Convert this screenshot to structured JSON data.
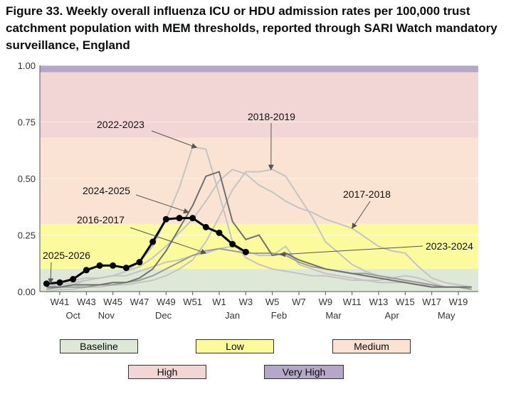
{
  "title": "Figure 33. Weekly overall influenza ICU or HDU admission rates per 100,000 trust catchment population with MEM thresholds, reported through SARI Watch mandatory surveillance, England",
  "chart_data": {
    "type": "line",
    "ylim": [
      0,
      1.0
    ],
    "yticks": [
      "0.00",
      "0.25",
      "0.50",
      "0.75",
      "1.00"
    ],
    "ytick_values": [
      0,
      0.25,
      0.5,
      0.75,
      1.0
    ],
    "weeks": [
      "W40",
      "W41",
      "W42",
      "W43",
      "W44",
      "W45",
      "W46",
      "W47",
      "W48",
      "W49",
      "W50",
      "W51",
      "W52",
      "W1",
      "W2",
      "W3",
      "W4",
      "W5",
      "W6",
      "W7",
      "W8",
      "W9",
      "W10",
      "W11",
      "W12",
      "W13",
      "W14",
      "W15",
      "W16",
      "W17",
      "W18",
      "W19",
      "W20"
    ],
    "xtick_labels": [
      "W41",
      "W43",
      "W45",
      "W47",
      "W49",
      "W51",
      "W1",
      "W3",
      "W5",
      "W7",
      "W9",
      "W11",
      "W13",
      "W15",
      "W17",
      "W19"
    ],
    "xtick_index": [
      1,
      3,
      5,
      7,
      9,
      11,
      13,
      15,
      17,
      19,
      21,
      23,
      25,
      27,
      29,
      31
    ],
    "month_labels": [
      "Oct",
      "Nov",
      "Dec",
      "Jan",
      "Feb",
      "Mar",
      "Apr",
      "May"
    ],
    "month_index": [
      2,
      4.5,
      8.8,
      14,
      17.5,
      21.6,
      26,
      30.1
    ],
    "thresholds": [
      {
        "name": "Baseline",
        "from": 0,
        "to": 0.1,
        "color": "#dde8d6"
      },
      {
        "name": "Low",
        "from": 0.1,
        "to": 0.3,
        "color": "#fbfb9e"
      },
      {
        "name": "Medium",
        "from": 0.3,
        "to": 0.68,
        "color": "#fbe3d3"
      },
      {
        "name": "High",
        "from": 0.68,
        "to": 0.97,
        "color": "#f2d6d6"
      },
      {
        "name": "Very High",
        "from": 0.97,
        "to": 1.0,
        "color": "#b4a7c8"
      }
    ],
    "series": [
      {
        "name": "2017-2018",
        "color": "#c4c4c4",
        "width": 2,
        "values": [
          0.02,
          0.03,
          0.04,
          0.05,
          0.06,
          0.07,
          0.09,
          0.11,
          0.15,
          0.2,
          0.26,
          0.32,
          0.4,
          0.49,
          0.54,
          0.52,
          0.47,
          0.44,
          0.4,
          0.37,
          0.35,
          0.32,
          0.3,
          0.28,
          0.24,
          0.2,
          0.18,
          0.17,
          0.11,
          0.06,
          0.04,
          0.03,
          0.02
        ]
      },
      {
        "name": "2018-2019",
        "color": "#c4c4c4",
        "width": 2,
        "values": [
          0.0,
          0.01,
          0.01,
          0.02,
          0.02,
          0.03,
          0.03,
          0.04,
          0.05,
          0.07,
          0.1,
          0.14,
          0.22,
          0.33,
          0.45,
          0.53,
          0.53,
          0.54,
          0.51,
          0.42,
          0.33,
          0.22,
          0.17,
          0.12,
          0.09,
          0.07,
          0.06,
          0.05,
          0.04,
          0.03,
          0.02,
          0.02,
          0.01
        ]
      },
      {
        "name": "2022-2023",
        "color": "#c4c4c4",
        "width": 2,
        "values": [
          0.01,
          0.02,
          0.03,
          0.05,
          0.06,
          0.07,
          0.09,
          0.13,
          0.2,
          0.32,
          0.46,
          0.64,
          0.63,
          0.43,
          0.22,
          0.15,
          0.12,
          0.1,
          0.09,
          0.08,
          0.07,
          0.07,
          0.06,
          0.05,
          0.05,
          0.04,
          0.04,
          0.04,
          0.03,
          0.03,
          0.02,
          0.02,
          0.02
        ]
      },
      {
        "name": "2016-2017",
        "color": "#c4c4c4",
        "width": 2,
        "values": [
          0.02,
          0.04,
          0.05,
          0.06,
          0.06,
          0.07,
          0.07,
          0.09,
          0.11,
          0.13,
          0.14,
          0.16,
          0.17,
          0.19,
          0.2,
          0.18,
          0.16,
          0.16,
          0.2,
          0.12,
          0.1,
          0.08,
          0.07,
          0.06,
          0.05,
          0.05,
          0.06,
          0.07,
          0.06,
          0.04,
          0.02,
          0.02,
          0.01
        ]
      },
      {
        "name": "2023-2024",
        "color": "#9c9c9c",
        "width": 2,
        "values": [
          0.01,
          0.02,
          0.02,
          0.02,
          0.03,
          0.03,
          0.04,
          0.05,
          0.07,
          0.1,
          0.13,
          0.16,
          0.18,
          0.19,
          0.18,
          0.17,
          0.17,
          0.17,
          0.16,
          0.13,
          0.11,
          0.1,
          0.09,
          0.08,
          0.08,
          0.07,
          0.06,
          0.05,
          0.04,
          0.03,
          0.02,
          0.02,
          0.01
        ]
      },
      {
        "name": "2024-2025",
        "color": "#707070",
        "width": 2,
        "values": [
          0.02,
          0.02,
          0.03,
          0.03,
          0.03,
          0.04,
          0.04,
          0.06,
          0.1,
          0.18,
          0.28,
          0.38,
          0.51,
          0.53,
          0.31,
          0.23,
          0.25,
          0.16,
          0.17,
          0.14,
          0.12,
          0.1,
          0.09,
          0.08,
          0.07,
          0.06,
          0.05,
          0.04,
          0.03,
          0.02,
          0.02,
          0.02,
          0.02
        ]
      },
      {
        "name": "2025-2026",
        "color": "#000000",
        "width": 3,
        "markers": true,
        "values": [
          0.035,
          0.04,
          0.055,
          0.095,
          0.115,
          0.115,
          0.105,
          0.13,
          0.22,
          0.32,
          0.325,
          0.325,
          0.285,
          0.26,
          0.21,
          0.175
        ]
      }
    ],
    "annotations": [
      {
        "text": "2022-2023",
        "series": "2022-2023"
      },
      {
        "text": "2018-2019",
        "series": "2018-2019"
      },
      {
        "text": "2024-2025",
        "series": "2024-2025"
      },
      {
        "text": "2017-2018",
        "series": "2017-2018"
      },
      {
        "text": "2016-2017",
        "series": "2016-2017"
      },
      {
        "text": "2023-2024",
        "series": "2023-2024"
      },
      {
        "text": "2025-2026",
        "series": "2025-2026"
      }
    ],
    "legend": [
      "Baseline",
      "Low",
      "Medium",
      "High",
      "Very High"
    ]
  }
}
